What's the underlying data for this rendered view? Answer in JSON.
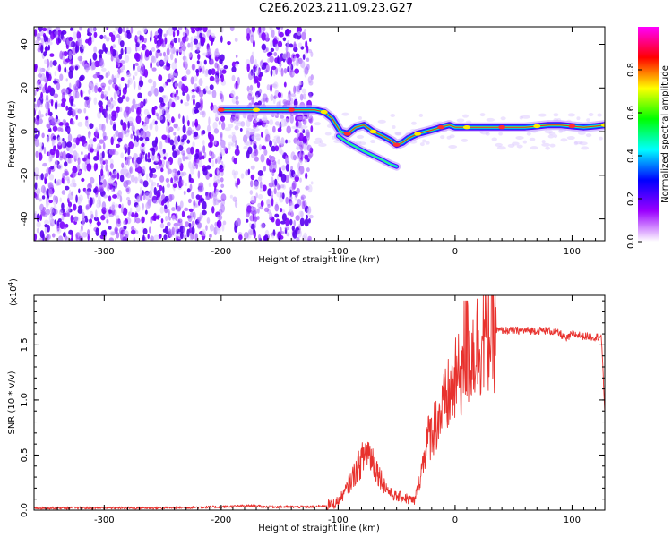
{
  "title": "C2E6.2023.211.09.23.G27",
  "chart_data": [
    {
      "type": "heatmap",
      "subtype": "spectrogram",
      "xlabel": "Height of straight line (km)",
      "ylabel": "Frequency (Hz)",
      "xlim": [
        -360,
        128
      ],
      "ylim": [
        -50,
        48
      ],
      "xticks": [
        -300,
        -200,
        -100,
        0,
        100
      ],
      "yticks": [
        -40,
        -20,
        0,
        20,
        40
      ],
      "noise_region_x": [
        -360,
        -122
      ],
      "noise_gaps_x": [
        [
          -198,
          -190
        ],
        [
          -186,
          -178
        ]
      ],
      "colorbar": {
        "label": "Normalized spectral amplitude",
        "range": [
          0,
          1
        ],
        "ticks": [
          0.0,
          0.2,
          0.4,
          0.6,
          0.8
        ],
        "colors": [
          "#ffffff",
          "#9b00ff",
          "#0000ff",
          "#00ffff",
          "#00ff00",
          "#ffff00",
          "#ff0000",
          "#ff00ff"
        ]
      },
      "main_trace": [
        [
          -200,
          10
        ],
        [
          -190,
          10
        ],
        [
          -180,
          10
        ],
        [
          -170,
          10
        ],
        [
          -160,
          10
        ],
        [
          -150,
          10
        ],
        [
          -140,
          10
        ],
        [
          -130,
          10
        ],
        [
          -120,
          10
        ],
        [
          -112,
          9
        ],
        [
          -105,
          6
        ],
        [
          -98,
          0
        ],
        [
          -92,
          -1
        ],
        [
          -85,
          2
        ],
        [
          -78,
          3
        ],
        [
          -70,
          0
        ],
        [
          -62,
          -2
        ],
        [
          -55,
          -4
        ],
        [
          -50,
          -6
        ],
        [
          -45,
          -5
        ],
        [
          -40,
          -3
        ],
        [
          -32,
          -1
        ],
        [
          -25,
          0
        ],
        [
          -18,
          1
        ],
        [
          -12,
          2
        ],
        [
          -5,
          3
        ],
        [
          0,
          2
        ],
        [
          10,
          2
        ],
        [
          20,
          2
        ],
        [
          30,
          2
        ],
        [
          40,
          2
        ],
        [
          50,
          2
        ],
        [
          60,
          2
        ],
        [
          70,
          2.5
        ],
        [
          80,
          3
        ],
        [
          90,
          3
        ],
        [
          100,
          2.5
        ],
        [
          110,
          2
        ],
        [
          120,
          2.5
        ],
        [
          128,
          3
        ]
      ],
      "secondary_trace": [
        [
          -100,
          -2
        ],
        [
          -92,
          -5
        ],
        [
          -85,
          -7
        ],
        [
          -78,
          -9
        ],
        [
          -70,
          -11
        ],
        [
          -62,
          -13
        ],
        [
          -55,
          -15
        ],
        [
          -50,
          -16
        ]
      ]
    },
    {
      "type": "line",
      "xlabel": "Height of straight line (km)",
      "ylabel": "SNR (10 * v/v)",
      "y_multiplier": "(x10",
      "y_multiplier_exp": "4",
      "y_multiplier_close": ")",
      "xlim": [
        -360,
        128
      ],
      "ylim": [
        0,
        1.95
      ],
      "xticks": [
        -300,
        -200,
        -100,
        0,
        100
      ],
      "yticks": [
        0.0,
        0.5,
        1.0,
        1.5
      ],
      "color": "#e8322e",
      "series": [
        {
          "x": [
            -360,
            -300,
            -250,
            -200,
            -175,
            -160,
            -120,
            -105,
            -100,
            -95,
            -90,
            -85,
            -80,
            -75,
            -70,
            -65,
            -60,
            -55,
            -50,
            -45,
            -40,
            -35,
            -32,
            -28,
            -25,
            -20,
            -15,
            -10,
            -5,
            0,
            5,
            8,
            10,
            15,
            20,
            25,
            30,
            35,
            40,
            60,
            80,
            90,
            95,
            100,
            110,
            120,
            125,
            128
          ],
          "y": [
            0.02,
            0.02,
            0.02,
            0.03,
            0.04,
            0.03,
            0.03,
            0.05,
            0.08,
            0.15,
            0.25,
            0.35,
            0.45,
            0.55,
            0.45,
            0.32,
            0.22,
            0.15,
            0.12,
            0.12,
            0.1,
            0.08,
            0.2,
            0.4,
            0.6,
            0.72,
            0.82,
            0.92,
            1.05,
            1.15,
            1.25,
            1.45,
            1.4,
            1.45,
            1.52,
            1.58,
            1.62,
            1.63,
            1.63,
            1.63,
            1.63,
            1.6,
            1.55,
            1.6,
            1.58,
            1.57,
            1.58,
            0.9
          ]
        }
      ]
    }
  ]
}
